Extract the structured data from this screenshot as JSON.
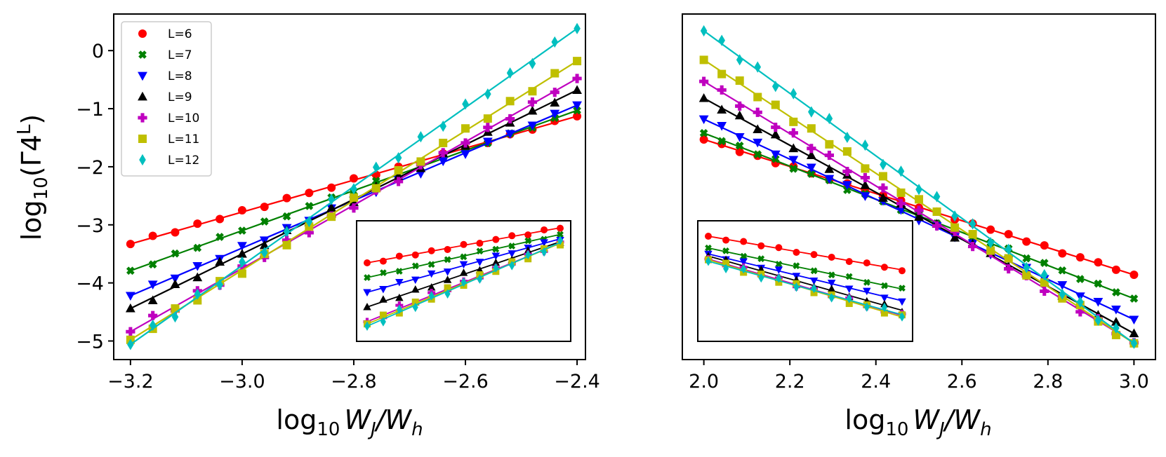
{
  "chart_data": [
    {
      "type": "scatter",
      "panel": "left",
      "ylabel_parts": {
        "base": "log",
        "sub": "10",
        "open": "(Γ4",
        "sup": "L",
        "close": ")"
      },
      "xlabel_parts": {
        "base": "log",
        "sub": "10",
        "expr": "W",
        "sub1": "J",
        "slash": "/W",
        "sub2": "h"
      },
      "xlim": [
        -3.23,
        -2.385
      ],
      "ylim": [
        -5.32,
        0.63
      ],
      "xticks": [
        -3.2,
        -3.0,
        -2.8,
        -2.6,
        -2.4
      ],
      "xtick_labels": [
        "−3.2",
        "−3.0",
        "−2.8",
        "−2.6",
        "−2.4"
      ],
      "yticks": [
        0,
        -1,
        -2,
        -3,
        -4,
        -5
      ],
      "ytick_labels": [
        "0",
        "−1",
        "−2",
        "−3",
        "−4",
        "−5"
      ],
      "x_start": -3.2,
      "x_step": 0.04,
      "n_points": 21,
      "legend": {
        "location": "upper-left"
      },
      "inset": {
        "position": "lower-right"
      },
      "series": [
        {
          "name": "L=6",
          "color": "#ff0000",
          "marker": "circle",
          "slope": 2.75,
          "intercept": 5.47,
          "noise": [
            0,
            0.03,
            -0.02,
            0.02,
            -0.01,
            0.03,
            -0.02,
            0.02,
            0,
            -0.02,
            0.03,
            -0.02,
            0.01,
            -0.03,
            0.02,
            0,
            -0.02,
            0.02,
            -0.01,
            0.03,
            0
          ]
        },
        {
          "name": "L=7",
          "color": "#008000",
          "marker": "x",
          "slope": 3.45,
          "intercept": 7.25,
          "noise": [
            0,
            -0.03,
            0.02,
            -0.02,
            0.03,
            0,
            0.02,
            -0.03,
            0.01,
            0.02,
            -0.02,
            0.03,
            0,
            -0.02,
            0.02,
            0.03,
            -0.01,
            0.02,
            -0.02,
            0.01,
            0
          ]
        },
        {
          "name": "L=8",
          "color": "#0000ff",
          "marker": "triangle-down",
          "slope": 4.1,
          "intercept": 8.9,
          "noise": [
            0,
            0.03,
            -0.03,
            0.02,
            -0.02,
            0.04,
            -0.03,
            0.02,
            -0.02,
            0.03,
            0,
            -0.02,
            0.03,
            -0.03,
            0.02,
            -0.02,
            0.03,
            0,
            -0.02,
            0.02,
            0
          ]
        },
        {
          "name": "L=9",
          "color": "#000000",
          "marker": "triangle-up",
          "slope": 4.7,
          "intercept": 10.6,
          "noise": [
            0,
            -0.05,
            0.04,
            -0.03,
            0.05,
            0,
            -0.04,
            0.03,
            -0.02,
            0.04,
            -0.05,
            0.03,
            0.02,
            -0.03,
            0.04,
            -0.02,
            0.03,
            0,
            0.02,
            -0.03,
            0
          ]
        },
        {
          "name": "L=10",
          "color": "#bf00bf",
          "marker": "plus",
          "slope": 5.45,
          "intercept": 12.6,
          "noise": [
            0,
            0.06,
            -0.08,
            0.05,
            -0.07,
            0.04,
            -0.03,
            0.05,
            -0.04,
            0.03,
            -0.05,
            0.04,
            -0.03,
            0.04,
            0.03,
            -0.02,
            0.03,
            -0.04,
            0.03,
            -0.02,
            0
          ]
        },
        {
          "name": "L=11",
          "color": "#bfbf00",
          "marker": "square",
          "slope": 6.0,
          "intercept": 14.22,
          "noise": [
            0,
            -0.05,
            0.06,
            -0.04,
            0.05,
            -0.06,
            0.04,
            -0.05,
            0.03,
            -0.04,
            0.05,
            -0.03,
            0.04,
            -0.05,
            0.03,
            0.04,
            -0.03,
            0.03,
            -0.04,
            0.03,
            0
          ]
        },
        {
          "name": "L=12",
          "color": "#00bfbf",
          "marker": "diamond",
          "slope": 6.8,
          "intercept": 16.7,
          "noise": [
            0,
            0.06,
            -0.07,
            0.05,
            -0.06,
            0.06,
            -0.05,
            0.04,
            -0.06,
            0.05,
            -0.04,
            0.06,
            -0.05,
            0.04,
            -0.05,
            0.06,
            -0.04,
            0.05,
            -0.06,
            0.04,
            0
          ]
        }
      ]
    },
    {
      "type": "scatter",
      "panel": "right",
      "xlabel_parts": {
        "base": "log",
        "sub": "10",
        "expr": "W",
        "sub1": "J",
        "slash": "/W",
        "sub2": "h"
      },
      "xlim": [
        1.95,
        3.05
      ],
      "ylim": [
        -5.32,
        0.63
      ],
      "xticks": [
        2.0,
        2.2,
        2.4,
        2.6,
        2.8,
        3.0
      ],
      "xtick_labels": [
        "2.0",
        "2.2",
        "2.4",
        "2.6",
        "2.8",
        "3.0"
      ],
      "x_start": 2.0,
      "x_step": 0.04167,
      "n_points": 25,
      "inset": {
        "position": "lower-left"
      },
      "series": [
        {
          "name": "L=6",
          "color": "#ff0000",
          "marker": "circle",
          "slope": -2.33,
          "intercept": 3.13,
          "noise": [
            0,
            0.02,
            -0.02,
            0.01,
            -0.02,
            0.02,
            0,
            -0.01,
            0.02,
            -0.02,
            0.01,
            0.02,
            -0.01,
            0.02,
            -0.02,
            0.01,
            0,
            0.02,
            -0.01,
            0.02,
            -0.02,
            0.01,
            0.02,
            -0.01,
            0
          ]
        },
        {
          "name": "L=7",
          "color": "#008000",
          "marker": "x",
          "slope": -2.85,
          "intercept": 4.28,
          "noise": [
            0,
            -0.02,
            0.02,
            -0.01,
            0.03,
            -0.02,
            0.01,
            0.02,
            -0.03,
            0.02,
            0.01,
            -0.02,
            0.03,
            -0.01,
            0.02,
            -0.02,
            0.01,
            0.03,
            -0.02,
            0.02,
            0.01,
            -0.02,
            0.02,
            -0.01,
            0
          ]
        },
        {
          "name": "L=8",
          "color": "#0000ff",
          "marker": "triangle-down",
          "slope": -3.45,
          "intercept": 5.72,
          "noise": [
            0,
            0.03,
            -0.02,
            0.03,
            -0.03,
            0.02,
            0.03,
            -0.02,
            0.02,
            -0.03,
            0.03,
            0.02,
            -0.02,
            0.03,
            -0.02,
            0.02,
            -0.03,
            0.02,
            0.03,
            -0.02,
            0.02,
            -0.03,
            0.02,
            0.03,
            0
          ]
        },
        {
          "name": "L=9",
          "color": "#000000",
          "marker": "triangle-up",
          "slope": -4.05,
          "intercept": 7.28,
          "noise": [
            0,
            -0.03,
            0.04,
            -0.03,
            0.05,
            -0.02,
            0.03,
            -0.04,
            0.03,
            0.02,
            -0.03,
            0.04,
            -0.02,
            0.03,
            -0.04,
            0.02,
            0.03,
            -0.03,
            0.02,
            0.04,
            -0.03,
            0.02,
            -0.02,
            0.03,
            0
          ]
        },
        {
          "name": "L=10",
          "color": "#bf00bf",
          "marker": "plus",
          "slope": -4.5,
          "intercept": 8.47,
          "noise": [
            0,
            0.04,
            -0.05,
            0.03,
            -0.04,
            0.05,
            -0.03,
            0.04,
            -0.05,
            0.03,
            0.04,
            -0.04,
            0.03,
            -0.05,
            0.04,
            -0.03,
            0.05,
            -0.04,
            0.03,
            -0.05,
            0.04,
            -0.03,
            0.04,
            -0.03,
            0
          ]
        },
        {
          "name": "L=11",
          "color": "#bfbf00",
          "marker": "square",
          "slope": -4.88,
          "intercept": 9.6,
          "noise": [
            0,
            -0.04,
            0.05,
            -0.03,
            0.04,
            -0.05,
            0.04,
            -0.03,
            0.05,
            -0.04,
            0.03,
            -0.05,
            0.04,
            0.03,
            -0.04,
            0.05,
            -0.03,
            0.04,
            -0.05,
            0.03,
            -0.04,
            0.05,
            -0.03,
            -0.06,
            0
          ]
        },
        {
          "name": "L=12",
          "color": "#00bfbf",
          "marker": "diamond",
          "slope": -5.38,
          "intercept": 11.1,
          "noise": [
            0,
            0.06,
            -0.05,
            0.05,
            -0.06,
            0.04,
            -0.05,
            0.06,
            -0.04,
            0.05,
            -0.06,
            0.05,
            -0.04,
            0.06,
            -0.05,
            0.04,
            -0.06,
            0.05,
            -0.04,
            0.06,
            -0.05,
            0.04,
            -0.05,
            0.04,
            0
          ]
        }
      ]
    }
  ]
}
